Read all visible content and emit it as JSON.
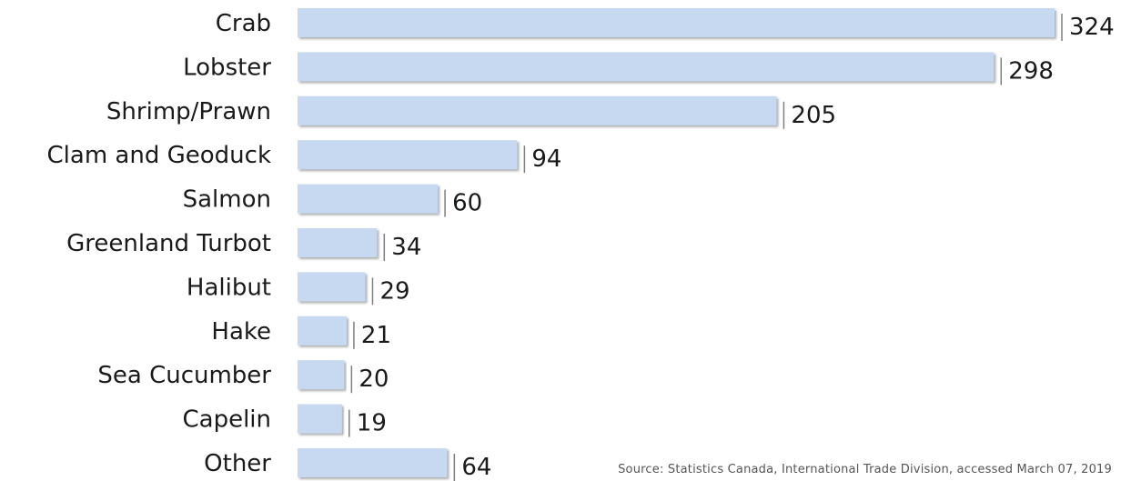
{
  "chart_data": {
    "type": "bar",
    "orientation": "horizontal",
    "categories": [
      "Crab",
      "Lobster",
      "Shrimp/Prawn",
      "Clam and Geoduck",
      "Salmon",
      "Greenland Turbot",
      "Halibut",
      "Hake",
      "Sea Cucumber",
      "Capelin",
      "Other"
    ],
    "values": [
      324,
      298,
      205,
      94,
      60,
      34,
      29,
      21,
      20,
      19,
      64
    ],
    "data_labels": [
      "324",
      "298",
      "205",
      "94",
      "60",
      "34",
      "29",
      "21",
      "20",
      "19",
      "64"
    ],
    "xlim": [
      0,
      324
    ],
    "grid": false,
    "legend": "none",
    "colors": {
      "bar_fill": "#c6d9f1",
      "bar_shadow": "#8a8a8a",
      "tick": "#7f7f7f"
    }
  },
  "source": "Source: Statistics Canada, International Trade Division, accessed March 07, 2019"
}
